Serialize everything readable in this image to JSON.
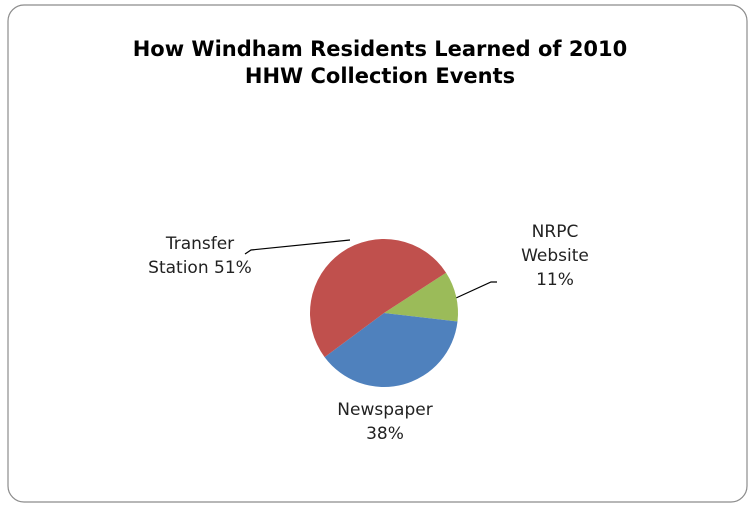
{
  "chart_data": {
    "type": "pie",
    "title": "How Windham Residents Learned of 2010 HHW Collection Events",
    "categories": [
      "NRPC Website",
      "Newspaper",
      "Transfer Station"
    ],
    "values": [
      11,
      38,
      51
    ],
    "value_labels": [
      "11%",
      "38%",
      "51%"
    ],
    "colors": [
      "#9bbb59",
      "#4f81bd",
      "#c0504d"
    ]
  }
}
